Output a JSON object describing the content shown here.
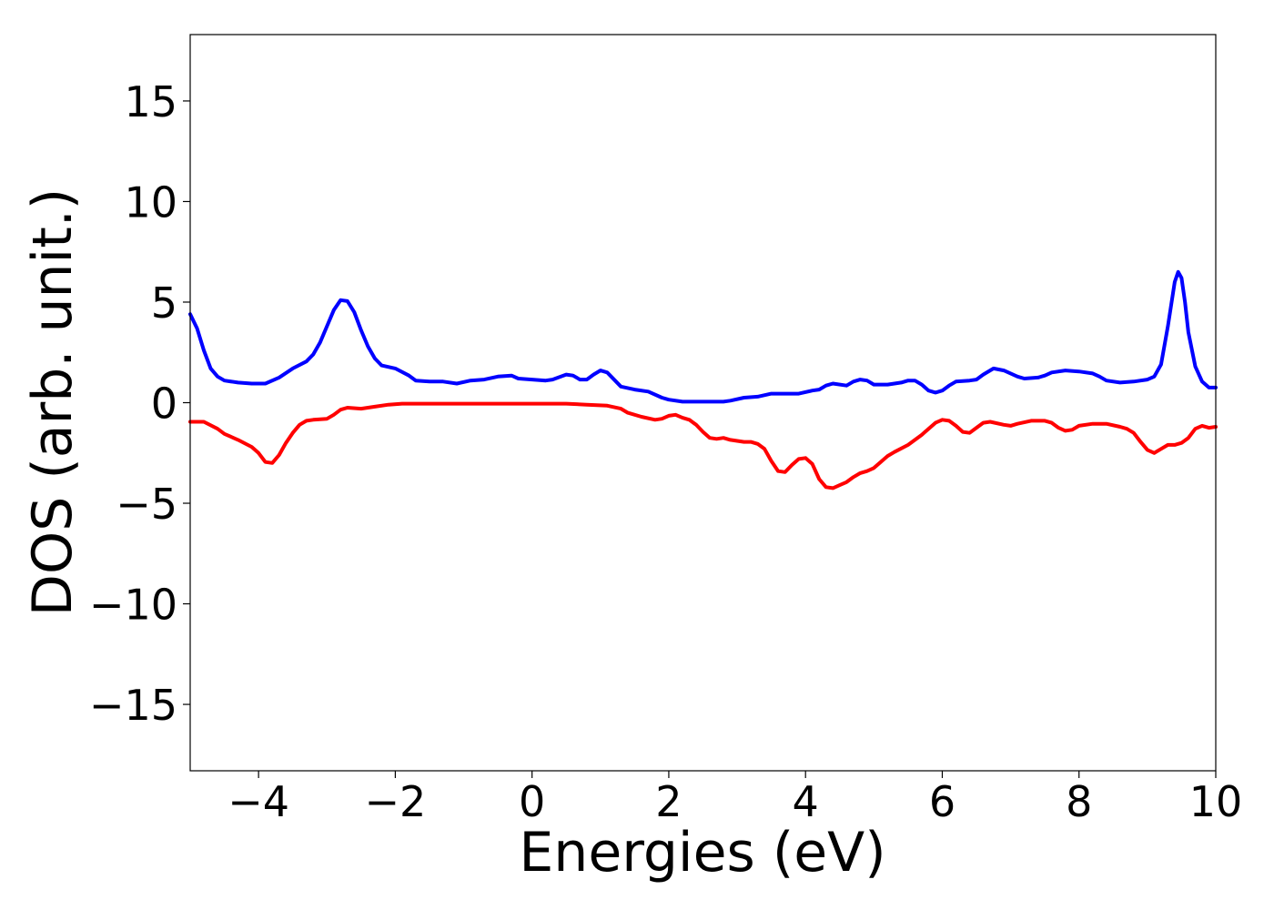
{
  "chart_data": {
    "type": "line",
    "title": "",
    "xlabel": "Energies (eV)",
    "ylabel": "DOS (arb. unit.)",
    "xlim": [
      -5,
      10
    ],
    "ylim": [
      -18.3,
      18.3
    ],
    "grid": false,
    "legend": "none",
    "x_ticks": [
      {
        "value": -4,
        "label": "−4"
      },
      {
        "value": -2,
        "label": "−2"
      },
      {
        "value": 0,
        "label": "0"
      },
      {
        "value": 2,
        "label": "2"
      },
      {
        "value": 4,
        "label": "4"
      },
      {
        "value": 6,
        "label": "6"
      },
      {
        "value": 8,
        "label": "8"
      },
      {
        "value": 10,
        "label": "10"
      }
    ],
    "y_ticks": [
      {
        "value": 15,
        "label": "15"
      },
      {
        "value": 10,
        "label": "10"
      },
      {
        "value": 5,
        "label": "5"
      },
      {
        "value": 0,
        "label": "0"
      },
      {
        "value": -5,
        "label": "−5"
      },
      {
        "value": -10,
        "label": "−10"
      },
      {
        "value": -15,
        "label": "−15"
      }
    ],
    "series": [
      {
        "color": "#0000ff",
        "points": [
          [
            -5.0,
            4.4
          ],
          [
            -4.9,
            3.7
          ],
          [
            -4.8,
            2.6
          ],
          [
            -4.7,
            1.7
          ],
          [
            -4.6,
            1.3
          ],
          [
            -4.5,
            1.1
          ],
          [
            -4.3,
            1.0
          ],
          [
            -4.1,
            0.95
          ],
          [
            -3.9,
            0.95
          ],
          [
            -3.7,
            1.25
          ],
          [
            -3.5,
            1.7
          ],
          [
            -3.3,
            2.05
          ],
          [
            -3.2,
            2.4
          ],
          [
            -3.1,
            3.0
          ],
          [
            -3.0,
            3.8
          ],
          [
            -2.9,
            4.6
          ],
          [
            -2.8,
            5.1
          ],
          [
            -2.7,
            5.05
          ],
          [
            -2.6,
            4.5
          ],
          [
            -2.5,
            3.6
          ],
          [
            -2.4,
            2.8
          ],
          [
            -2.3,
            2.2
          ],
          [
            -2.2,
            1.85
          ],
          [
            -2.0,
            1.7
          ],
          [
            -1.8,
            1.35
          ],
          [
            -1.7,
            1.1
          ],
          [
            -1.5,
            1.05
          ],
          [
            -1.3,
            1.05
          ],
          [
            -1.1,
            0.95
          ],
          [
            -0.9,
            1.1
          ],
          [
            -0.7,
            1.15
          ],
          [
            -0.5,
            1.3
          ],
          [
            -0.3,
            1.35
          ],
          [
            -0.2,
            1.2
          ],
          [
            0.0,
            1.15
          ],
          [
            0.2,
            1.1
          ],
          [
            0.3,
            1.15
          ],
          [
            0.5,
            1.4
          ],
          [
            0.6,
            1.35
          ],
          [
            0.7,
            1.15
          ],
          [
            0.8,
            1.15
          ],
          [
            0.9,
            1.4
          ],
          [
            1.0,
            1.6
          ],
          [
            1.1,
            1.5
          ],
          [
            1.3,
            0.8
          ],
          [
            1.5,
            0.65
          ],
          [
            1.7,
            0.55
          ],
          [
            1.9,
            0.25
          ],
          [
            2.0,
            0.15
          ],
          [
            2.2,
            0.05
          ],
          [
            2.4,
            0.05
          ],
          [
            2.6,
            0.05
          ],
          [
            2.8,
            0.05
          ],
          [
            2.9,
            0.1
          ],
          [
            3.1,
            0.25
          ],
          [
            3.3,
            0.3
          ],
          [
            3.5,
            0.45
          ],
          [
            3.7,
            0.45
          ],
          [
            3.9,
            0.45
          ],
          [
            4.1,
            0.6
          ],
          [
            4.2,
            0.65
          ],
          [
            4.3,
            0.85
          ],
          [
            4.4,
            0.95
          ],
          [
            4.6,
            0.85
          ],
          [
            4.7,
            1.05
          ],
          [
            4.8,
            1.15
          ],
          [
            4.9,
            1.1
          ],
          [
            5.0,
            0.9
          ],
          [
            5.2,
            0.9
          ],
          [
            5.4,
            1.0
          ],
          [
            5.5,
            1.1
          ],
          [
            5.6,
            1.1
          ],
          [
            5.7,
            0.9
          ],
          [
            5.8,
            0.6
          ],
          [
            5.9,
            0.5
          ],
          [
            6.0,
            0.6
          ],
          [
            6.1,
            0.85
          ],
          [
            6.2,
            1.05
          ],
          [
            6.4,
            1.1
          ],
          [
            6.5,
            1.15
          ],
          [
            6.6,
            1.4
          ],
          [
            6.75,
            1.7
          ],
          [
            6.9,
            1.6
          ],
          [
            7.1,
            1.3
          ],
          [
            7.2,
            1.2
          ],
          [
            7.4,
            1.25
          ],
          [
            7.5,
            1.35
          ],
          [
            7.6,
            1.5
          ],
          [
            7.8,
            1.6
          ],
          [
            8.0,
            1.55
          ],
          [
            8.2,
            1.45
          ],
          [
            8.3,
            1.3
          ],
          [
            8.4,
            1.1
          ],
          [
            8.6,
            1.0
          ],
          [
            8.8,
            1.05
          ],
          [
            9.0,
            1.15
          ],
          [
            9.1,
            1.3
          ],
          [
            9.2,
            1.9
          ],
          [
            9.3,
            3.8
          ],
          [
            9.4,
            6.0
          ],
          [
            9.45,
            6.5
          ],
          [
            9.5,
            6.2
          ],
          [
            9.55,
            5.0
          ],
          [
            9.6,
            3.5
          ],
          [
            9.7,
            1.8
          ],
          [
            9.8,
            1.05
          ],
          [
            9.9,
            0.75
          ],
          [
            10.0,
            0.75
          ]
        ]
      },
      {
        "color": "#ff0000",
        "points": [
          [
            -5.0,
            -0.95
          ],
          [
            -4.8,
            -0.95
          ],
          [
            -4.6,
            -1.3
          ],
          [
            -4.5,
            -1.55
          ],
          [
            -4.3,
            -1.85
          ],
          [
            -4.1,
            -2.2
          ],
          [
            -4.0,
            -2.5
          ],
          [
            -3.9,
            -2.95
          ],
          [
            -3.8,
            -3.0
          ],
          [
            -3.7,
            -2.6
          ],
          [
            -3.6,
            -2.0
          ],
          [
            -3.5,
            -1.5
          ],
          [
            -3.4,
            -1.1
          ],
          [
            -3.3,
            -0.9
          ],
          [
            -3.2,
            -0.85
          ],
          [
            -3.0,
            -0.8
          ],
          [
            -2.9,
            -0.6
          ],
          [
            -2.8,
            -0.35
          ],
          [
            -2.7,
            -0.25
          ],
          [
            -2.5,
            -0.3
          ],
          [
            -2.3,
            -0.2
          ],
          [
            -2.1,
            -0.1
          ],
          [
            -1.9,
            -0.05
          ],
          [
            -1.5,
            -0.05
          ],
          [
            -1.0,
            -0.05
          ],
          [
            0.0,
            -0.05
          ],
          [
            0.5,
            -0.05
          ],
          [
            0.8,
            -0.1
          ],
          [
            1.1,
            -0.15
          ],
          [
            1.3,
            -0.3
          ],
          [
            1.4,
            -0.5
          ],
          [
            1.6,
            -0.7
          ],
          [
            1.8,
            -0.85
          ],
          [
            1.9,
            -0.8
          ],
          [
            2.0,
            -0.65
          ],
          [
            2.1,
            -0.6
          ],
          [
            2.2,
            -0.75
          ],
          [
            2.3,
            -0.85
          ],
          [
            2.4,
            -1.1
          ],
          [
            2.5,
            -1.45
          ],
          [
            2.6,
            -1.75
          ],
          [
            2.7,
            -1.8
          ],
          [
            2.8,
            -1.75
          ],
          [
            2.9,
            -1.85
          ],
          [
            3.1,
            -1.95
          ],
          [
            3.2,
            -1.95
          ],
          [
            3.3,
            -2.05
          ],
          [
            3.4,
            -2.3
          ],
          [
            3.5,
            -2.9
          ],
          [
            3.6,
            -3.4
          ],
          [
            3.7,
            -3.45
          ],
          [
            3.8,
            -3.1
          ],
          [
            3.9,
            -2.8
          ],
          [
            4.0,
            -2.75
          ],
          [
            4.1,
            -3.05
          ],
          [
            4.2,
            -3.8
          ],
          [
            4.3,
            -4.2
          ],
          [
            4.4,
            -4.25
          ],
          [
            4.5,
            -4.1
          ],
          [
            4.6,
            -3.95
          ],
          [
            4.7,
            -3.7
          ],
          [
            4.8,
            -3.5
          ],
          [
            4.9,
            -3.4
          ],
          [
            5.0,
            -3.25
          ],
          [
            5.1,
            -2.95
          ],
          [
            5.2,
            -2.65
          ],
          [
            5.3,
            -2.45
          ],
          [
            5.5,
            -2.1
          ],
          [
            5.6,
            -1.85
          ],
          [
            5.7,
            -1.6
          ],
          [
            5.8,
            -1.3
          ],
          [
            5.9,
            -1.0
          ],
          [
            6.0,
            -0.85
          ],
          [
            6.1,
            -0.9
          ],
          [
            6.2,
            -1.15
          ],
          [
            6.3,
            -1.45
          ],
          [
            6.4,
            -1.5
          ],
          [
            6.5,
            -1.25
          ],
          [
            6.6,
            -1.0
          ],
          [
            6.7,
            -0.95
          ],
          [
            6.9,
            -1.1
          ],
          [
            7.0,
            -1.15
          ],
          [
            7.1,
            -1.05
          ],
          [
            7.3,
            -0.9
          ],
          [
            7.5,
            -0.9
          ],
          [
            7.6,
            -1.0
          ],
          [
            7.7,
            -1.25
          ],
          [
            7.8,
            -1.4
          ],
          [
            7.9,
            -1.35
          ],
          [
            8.0,
            -1.15
          ],
          [
            8.2,
            -1.05
          ],
          [
            8.4,
            -1.05
          ],
          [
            8.6,
            -1.2
          ],
          [
            8.7,
            -1.3
          ],
          [
            8.8,
            -1.5
          ],
          [
            8.9,
            -1.95
          ],
          [
            9.0,
            -2.35
          ],
          [
            9.1,
            -2.5
          ],
          [
            9.2,
            -2.3
          ],
          [
            9.3,
            -2.1
          ],
          [
            9.4,
            -2.1
          ],
          [
            9.5,
            -2.0
          ],
          [
            9.6,
            -1.75
          ],
          [
            9.7,
            -1.3
          ],
          [
            9.8,
            -1.15
          ],
          [
            9.9,
            -1.25
          ],
          [
            10.0,
            -1.2
          ]
        ]
      }
    ]
  }
}
